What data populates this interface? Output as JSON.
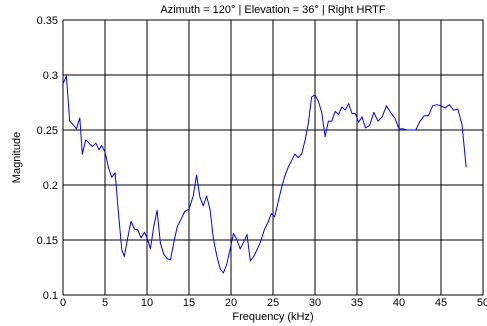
{
  "chart_data": {
    "type": "line",
    "title": "Azimuth = 120° | Elevation = 36° | Right HRTF",
    "xlabel": "Frequency (kHz)",
    "ylabel": "Magnitude",
    "xlim": [
      0,
      50
    ],
    "ylim": [
      0.1,
      0.35
    ],
    "xticks": [
      0,
      5,
      10,
      15,
      20,
      25,
      30,
      35,
      40,
      45,
      50
    ],
    "yticks": [
      0.1,
      0.15,
      0.2,
      0.25,
      0.3,
      0.35
    ],
    "xtick_labels": [
      "0",
      "5",
      "10",
      "15",
      "20",
      "25",
      "30",
      "35",
      "40",
      "45",
      "50"
    ],
    "ytick_labels": [
      "0.1",
      "0.15",
      "0.2",
      "0.25",
      "0.3",
      "0.35"
    ],
    "grid": true,
    "legend": "none",
    "line_color": "#0000ff",
    "series": [
      {
        "x": [
          0,
          0.4,
          0.8,
          1.2,
          1.6,
          2.0,
          2.3,
          2.7,
          3.1,
          3.5,
          3.9,
          4.3,
          4.6,
          5.0,
          5.4,
          5.8,
          6.2,
          6.6,
          7.0,
          7.3,
          7.7,
          8.1,
          8.5,
          8.9,
          9.3,
          9.7,
          10.1,
          10.4,
          10.8,
          11.2,
          11.6,
          12.0,
          12.4,
          12.8,
          13.2,
          13.6,
          14.0,
          14.5,
          15.0,
          15.5,
          15.9,
          16.3,
          16.7,
          17.1,
          17.5,
          17.9,
          18.3,
          18.7,
          19.1,
          19.5,
          19.9,
          20.3,
          20.7,
          21.1,
          21.5,
          21.9,
          22.3,
          22.7,
          23.1,
          23.5,
          24.0,
          24.4,
          24.8,
          25.2,
          25.6,
          26.0,
          26.4,
          26.8,
          27.2,
          27.6,
          28.0,
          28.4,
          28.8,
          29.2,
          29.6,
          30.0,
          30.4,
          30.8,
          31.2,
          31.6,
          32.0,
          32.4,
          32.8,
          33.2,
          33.6,
          34.0,
          34.4,
          34.8,
          35.2,
          35.6,
          36.0,
          36.5,
          37.0,
          37.5,
          38.0,
          38.5,
          39.0,
          39.5,
          40.0,
          40.5,
          41.0,
          41.5,
          42.0,
          42.5,
          43.0,
          43.5,
          44.0,
          44.5,
          45.0,
          45.5,
          46.0,
          46.5,
          47.0,
          47.5,
          48.0
        ],
        "y": [
          0.292,
          0.299,
          0.258,
          0.255,
          0.251,
          0.261,
          0.228,
          0.241,
          0.238,
          0.235,
          0.238,
          0.232,
          0.236,
          0.23,
          0.216,
          0.207,
          0.211,
          0.175,
          0.141,
          0.135,
          0.152,
          0.167,
          0.16,
          0.159,
          0.152,
          0.157,
          0.15,
          0.142,
          0.162,
          0.177,
          0.147,
          0.137,
          0.133,
          0.132,
          0.148,
          0.162,
          0.168,
          0.176,
          0.178,
          0.19,
          0.209,
          0.189,
          0.181,
          0.19,
          0.178,
          0.151,
          0.136,
          0.124,
          0.12,
          0.128,
          0.142,
          0.156,
          0.15,
          0.142,
          0.148,
          0.155,
          0.131,
          0.135,
          0.141,
          0.148,
          0.16,
          0.166,
          0.174,
          0.171,
          0.184,
          0.197,
          0.208,
          0.216,
          0.222,
          0.228,
          0.225,
          0.228,
          0.24,
          0.256,
          0.28,
          0.282,
          0.276,
          0.266,
          0.244,
          0.258,
          0.258,
          0.267,
          0.264,
          0.271,
          0.268,
          0.274,
          0.265,
          0.265,
          0.257,
          0.262,
          0.252,
          0.254,
          0.266,
          0.258,
          0.262,
          0.272,
          0.266,
          0.261,
          0.251,
          0.251,
          0.25,
          0.25,
          0.25,
          0.258,
          0.263,
          0.263,
          0.272,
          0.273,
          0.272,
          0.27,
          0.273,
          0.268,
          0.269,
          0.255,
          0.216
        ]
      }
    ]
  }
}
